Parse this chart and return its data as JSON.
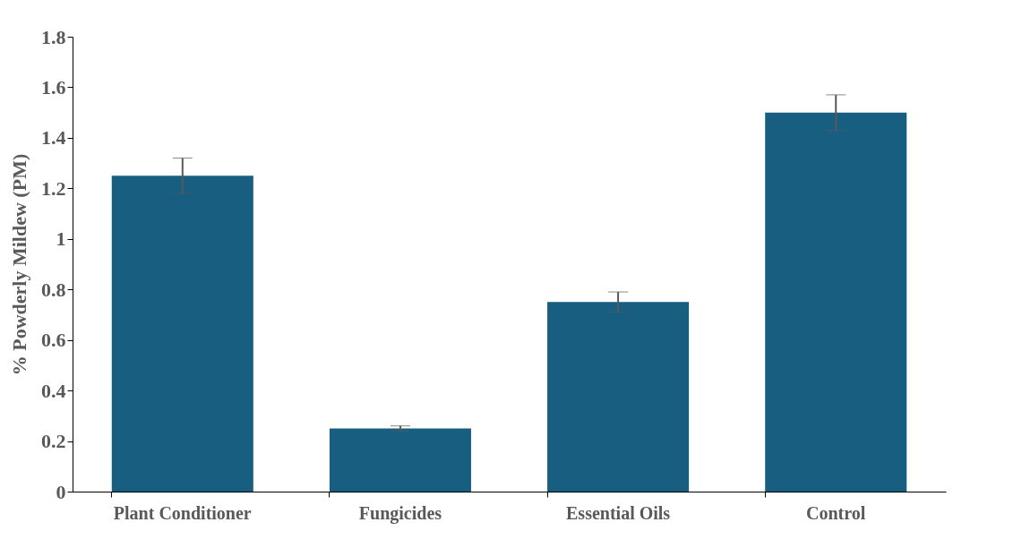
{
  "chart_data": {
    "type": "bar",
    "ylabel": "% Powderly Mildew (PM)",
    "categories": [
      "Plant Conditioner",
      "Fungicides",
      "Essential Oils",
      "Control"
    ],
    "values": [
      1.25,
      0.25,
      0.75,
      1.5
    ],
    "errors": [
      0.07,
      0.01,
      0.04,
      0.07
    ],
    "color": "#175e80",
    "ylim": [
      0,
      1.8
    ],
    "yticks": [
      0,
      0.2,
      0.4,
      0.6,
      0.8,
      1,
      1.2,
      1.4,
      1.6,
      1.8
    ],
    "grid": false
  }
}
